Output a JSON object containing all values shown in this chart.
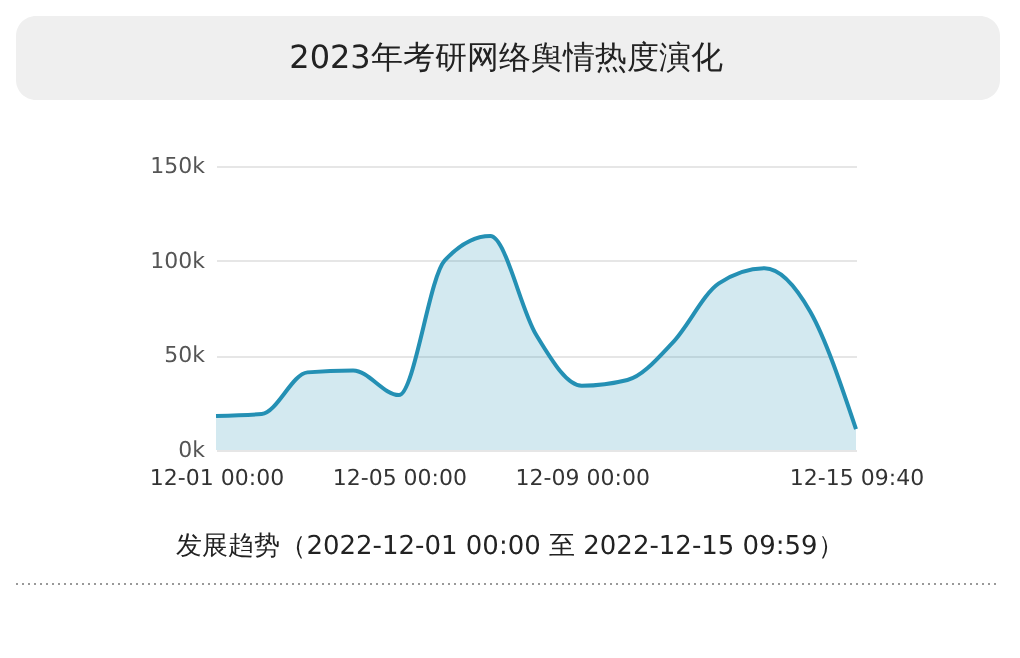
{
  "chart_data": {
    "type": "area",
    "title": "2023年考研网络舆情热度演化",
    "categories": [
      "12-01 00:00",
      null,
      null,
      null,
      "12-05 00:00",
      null,
      null,
      null,
      "12-09 00:00",
      null,
      null,
      null,
      null,
      null,
      "12-15 09:40"
    ],
    "series": [
      {
        "color": "#2490b4",
        "values": [
          18000,
          19000,
          41000,
          42000,
          29000,
          100000,
          113000,
          61000,
          34000,
          37000,
          57000,
          88000,
          96000,
          73000,
          11000
        ]
      }
    ],
    "ylim": [
      0,
      150000
    ],
    "yticks": [
      {
        "value": 0,
        "label": "0k"
      },
      {
        "value": 50000,
        "label": "50k"
      },
      {
        "value": 100000,
        "label": "100k"
      },
      {
        "value": 150000,
        "label": "150k"
      }
    ],
    "grid": "y",
    "annotations": [
      "发展趋势（2022-12-01 00:00 至 2022-12-15 09:59）"
    ]
  }
}
